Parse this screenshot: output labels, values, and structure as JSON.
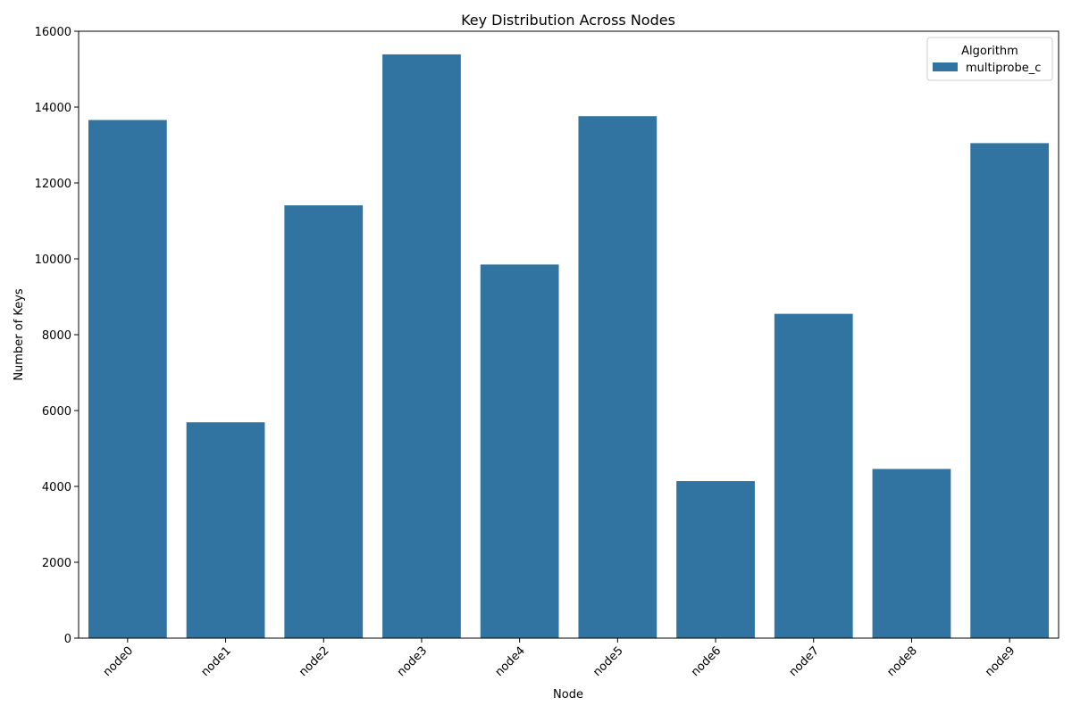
{
  "chart_data": {
    "type": "bar",
    "title": "Key Distribution Across Nodes",
    "xlabel": "Node",
    "ylabel": "Number of Keys",
    "categories": [
      "node0",
      "node1",
      "node2",
      "node3",
      "node4",
      "node5",
      "node6",
      "node7",
      "node8",
      "node9"
    ],
    "series": [
      {
        "name": "multiprobe_c",
        "values": [
          13660,
          5690,
          11410,
          15390,
          9850,
          13760,
          4140,
          8550,
          4460,
          13050
        ],
        "color": "#3274a1"
      }
    ],
    "ylim": [
      0,
      16000
    ],
    "yticks": [
      0,
      2000,
      4000,
      6000,
      8000,
      10000,
      12000,
      14000,
      16000
    ],
    "ytick_labels": [
      "0",
      "2000",
      "4000",
      "6000",
      "8000",
      "10000",
      "12000",
      "14000",
      "16000"
    ],
    "grid": false,
    "legend": {
      "title": "Algorithm",
      "placement": "top-right"
    },
    "xtick_rotation_deg": 45
  }
}
